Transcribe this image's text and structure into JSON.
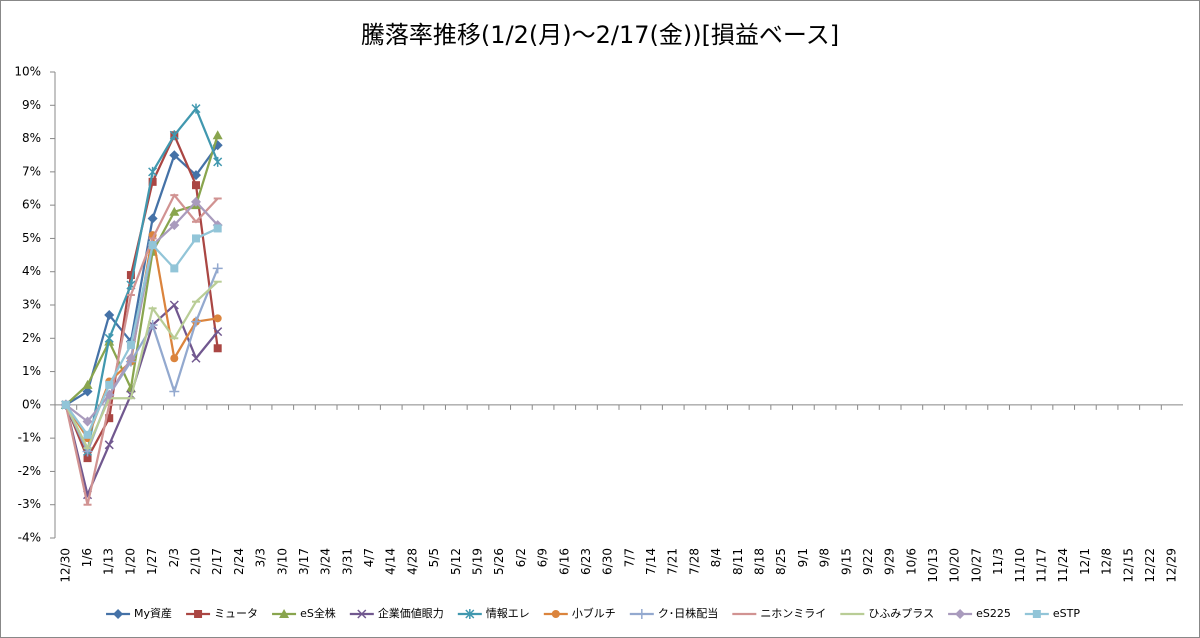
{
  "chart_data": {
    "type": "line",
    "title": "騰落率推移(1/2(月)～2/17(金))[損益ベース]",
    "categories": [
      "12/30",
      "1/6",
      "1/13",
      "1/20",
      "1/27",
      "2/3",
      "2/10",
      "2/17",
      "2/24",
      "3/3",
      "3/10",
      "3/17",
      "3/24",
      "3/31",
      "4/7",
      "4/14",
      "4/28",
      "5/5",
      "5/12",
      "5/19",
      "5/26",
      "6/2",
      "6/9",
      "6/16",
      "6/23",
      "6/30",
      "7/7",
      "7/14",
      "7/21",
      "7/28",
      "8/4",
      "8/11",
      "8/18",
      "8/25",
      "9/1",
      "9/8",
      "9/15",
      "9/22",
      "9/29",
      "10/6",
      "10/13",
      "10/20",
      "10/27",
      "11/3",
      "11/10",
      "11/17",
      "11/24",
      "12/1",
      "12/8",
      "12/15",
      "12/22",
      "12/29"
    ],
    "ylim": [
      -4,
      10
    ],
    "yticks": [
      {
        "value": -4,
        "label": "-4%"
      },
      {
        "value": -3,
        "label": "-3%"
      },
      {
        "value": -2,
        "label": "-2%"
      },
      {
        "value": -1,
        "label": "-1%"
      },
      {
        "value": 0,
        "label": "0%"
      },
      {
        "value": 1,
        "label": "1%"
      },
      {
        "value": 2,
        "label": "2%"
      },
      {
        "value": 3,
        "label": "3%"
      },
      {
        "value": 4,
        "label": "4%"
      },
      {
        "value": 5,
        "label": "5%"
      },
      {
        "value": 6,
        "label": "6%"
      },
      {
        "value": 7,
        "label": "7%"
      },
      {
        "value": 8,
        "label": "8%"
      },
      {
        "value": 9,
        "label": "9%"
      },
      {
        "value": 10,
        "label": "10%"
      }
    ],
    "grid": false,
    "legend": "bottom",
    "series": [
      {
        "name": "My資産",
        "color": "#4572a7",
        "marker": "diamond",
        "values": [
          0,
          0.4,
          2.7,
          1.9,
          5.6,
          7.5,
          6.9,
          7.8,
          null,
          null,
          null,
          null,
          null,
          null,
          null,
          null,
          null,
          null,
          null,
          null,
          null,
          null,
          null,
          null,
          null,
          null,
          null,
          null,
          null,
          null,
          null,
          null,
          null,
          null,
          null,
          null,
          null,
          null,
          null,
          null,
          null,
          null,
          null,
          null,
          null,
          null,
          null,
          null,
          null,
          null,
          null,
          null
        ]
      },
      {
        "name": "ミュータ",
        "color": "#aa4643",
        "marker": "square",
        "values": [
          0,
          -1.6,
          -0.4,
          3.9,
          6.7,
          8.1,
          6.6,
          1.7,
          null,
          null,
          null,
          null,
          null,
          null,
          null,
          null,
          null,
          null,
          null,
          null,
          null,
          null,
          null,
          null,
          null,
          null,
          null,
          null,
          null,
          null,
          null,
          null,
          null,
          null,
          null,
          null,
          null,
          null,
          null,
          null,
          null,
          null,
          null,
          null,
          null,
          null,
          null,
          null,
          null,
          null,
          null,
          null
        ]
      },
      {
        "name": "eS全株",
        "color": "#89a54e",
        "marker": "triangle",
        "values": [
          0,
          0.6,
          1.9,
          0.5,
          4.6,
          5.8,
          6.0,
          8.1,
          null,
          null,
          null,
          null,
          null,
          null,
          null,
          null,
          null,
          null,
          null,
          null,
          null,
          null,
          null,
          null,
          null,
          null,
          null,
          null,
          null,
          null,
          null,
          null,
          null,
          null,
          null,
          null,
          null,
          null,
          null,
          null,
          null,
          null,
          null,
          null,
          null,
          null,
          null,
          null,
          null,
          null,
          null,
          null
        ]
      },
      {
        "name": "企業価値眼力",
        "color": "#71588f",
        "marker": "x",
        "values": [
          0,
          -2.7,
          -1.2,
          0.3,
          2.4,
          3.0,
          1.4,
          2.2,
          null,
          null,
          null,
          null,
          null,
          null,
          null,
          null,
          null,
          null,
          null,
          null,
          null,
          null,
          null,
          null,
          null,
          null,
          null,
          null,
          null,
          null,
          null,
          null,
          null,
          null,
          null,
          null,
          null,
          null,
          null,
          null,
          null,
          null,
          null,
          null,
          null,
          null,
          null,
          null,
          null,
          null,
          null,
          null
        ]
      },
      {
        "name": "情報エレ",
        "color": "#4198af",
        "marker": "star",
        "values": [
          0,
          -1.4,
          2.0,
          3.6,
          7.0,
          8.1,
          8.9,
          7.3,
          null,
          null,
          null,
          null,
          null,
          null,
          null,
          null,
          null,
          null,
          null,
          null,
          null,
          null,
          null,
          null,
          null,
          null,
          null,
          null,
          null,
          null,
          null,
          null,
          null,
          null,
          null,
          null,
          null,
          null,
          null,
          null,
          null,
          null,
          null,
          null,
          null,
          null,
          null,
          null,
          null,
          null,
          null,
          null
        ]
      },
      {
        "name": "小ブルチ",
        "color": "#db843d",
        "marker": "circle",
        "values": [
          0,
          -1.0,
          0.7,
          1.3,
          5.1,
          1.4,
          2.5,
          2.6,
          null,
          null,
          null,
          null,
          null,
          null,
          null,
          null,
          null,
          null,
          null,
          null,
          null,
          null,
          null,
          null,
          null,
          null,
          null,
          null,
          null,
          null,
          null,
          null,
          null,
          null,
          null,
          null,
          null,
          null,
          null,
          null,
          null,
          null,
          null,
          null,
          null,
          null,
          null,
          null,
          null,
          null,
          null,
          null
        ]
      },
      {
        "name": "ク･日株配当",
        "color": "#93a9cf",
        "marker": "plus",
        "values": [
          0,
          -1.4,
          0.3,
          1.3,
          2.4,
          0.4,
          2.5,
          4.1,
          null,
          null,
          null,
          null,
          null,
          null,
          null,
          null,
          null,
          null,
          null,
          null,
          null,
          null,
          null,
          null,
          null,
          null,
          null,
          null,
          null,
          null,
          null,
          null,
          null,
          null,
          null,
          null,
          null,
          null,
          null,
          null,
          null,
          null,
          null,
          null,
          null,
          null,
          null,
          null,
          null,
          null,
          null,
          null
        ]
      },
      {
        "name": "ニホンミライ",
        "color": "#d19392",
        "marker": "dash",
        "values": [
          0,
          -3.0,
          0.0,
          3.3,
          5.0,
          6.3,
          5.5,
          6.2,
          null,
          null,
          null,
          null,
          null,
          null,
          null,
          null,
          null,
          null,
          null,
          null,
          null,
          null,
          null,
          null,
          null,
          null,
          null,
          null,
          null,
          null,
          null,
          null,
          null,
          null,
          null,
          null,
          null,
          null,
          null,
          null,
          null,
          null,
          null,
          null,
          null,
          null,
          null,
          null,
          null,
          null,
          null,
          null
        ]
      },
      {
        "name": "ひふみプラス",
        "color": "#b9cd96",
        "marker": "dash",
        "values": [
          0,
          -1.3,
          0.2,
          0.2,
          2.9,
          2.0,
          3.1,
          3.7,
          null,
          null,
          null,
          null,
          null,
          null,
          null,
          null,
          null,
          null,
          null,
          null,
          null,
          null,
          null,
          null,
          null,
          null,
          null,
          null,
          null,
          null,
          null,
          null,
          null,
          null,
          null,
          null,
          null,
          null,
          null,
          null,
          null,
          null,
          null,
          null,
          null,
          null,
          null,
          null,
          null,
          null,
          null,
          null
        ]
      },
      {
        "name": "eS225",
        "color": "#a99bbd",
        "marker": "diamond",
        "values": [
          0,
          -0.5,
          0.3,
          1.4,
          4.8,
          5.4,
          6.1,
          5.4,
          null,
          null,
          null,
          null,
          null,
          null,
          null,
          null,
          null,
          null,
          null,
          null,
          null,
          null,
          null,
          null,
          null,
          null,
          null,
          null,
          null,
          null,
          null,
          null,
          null,
          null,
          null,
          null,
          null,
          null,
          null,
          null,
          null,
          null,
          null,
          null,
          null,
          null,
          null,
          null,
          null,
          null,
          null,
          null
        ]
      },
      {
        "name": "eSTP",
        "color": "#92c5d8",
        "marker": "square",
        "values": [
          0,
          -0.9,
          0.6,
          1.8,
          4.8,
          4.1,
          5.0,
          5.3,
          null,
          null,
          null,
          null,
          null,
          null,
          null,
          null,
          null,
          null,
          null,
          null,
          null,
          null,
          null,
          null,
          null,
          null,
          null,
          null,
          null,
          null,
          null,
          null,
          null,
          null,
          null,
          null,
          null,
          null,
          null,
          null,
          null,
          null,
          null,
          null,
          null,
          null,
          null,
          null,
          null,
          null,
          null,
          null
        ]
      }
    ]
  }
}
